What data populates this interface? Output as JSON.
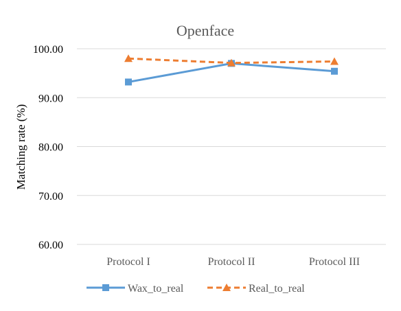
{
  "chart_data": {
    "type": "line",
    "title": "Openface",
    "xlabel": "",
    "ylabel": "Matching rate (%)",
    "categories": [
      "Protocol I",
      "Protocol II",
      "Protocol III"
    ],
    "ylim": [
      60,
      100
    ],
    "yticks": [
      "60.00",
      "70.00",
      "80.00",
      "90.00",
      "100.00"
    ],
    "ytick_values": [
      60,
      70,
      80,
      90,
      100
    ],
    "grid": "horizontal",
    "legend_position": "bottom",
    "series": [
      {
        "name": "Wax_to_real",
        "values": [
          93.2,
          97.0,
          95.4
        ],
        "color": "#5B9BD5",
        "marker": "square",
        "line": "solid"
      },
      {
        "name": "Real_to_real",
        "values": [
          98.0,
          97.1,
          97.4
        ],
        "color": "#ED7D31",
        "marker": "triangle",
        "line": "dashed"
      }
    ]
  }
}
